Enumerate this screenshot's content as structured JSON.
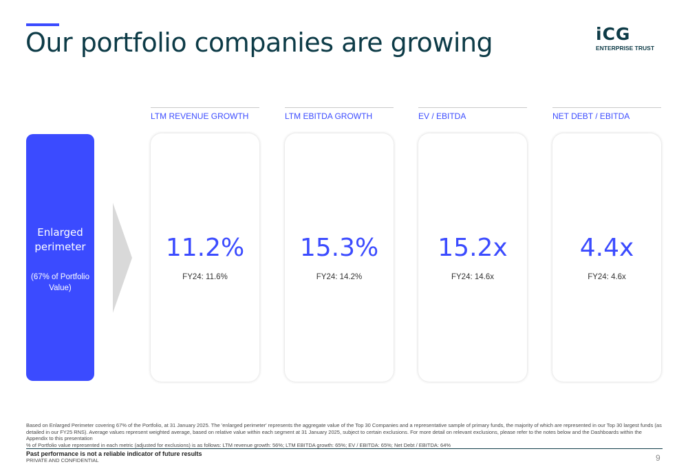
{
  "header": {
    "title": "Our portfolio companies are growing",
    "logo_mark": "iCG",
    "logo_sub": "ENTERPRISE TRUST"
  },
  "left_panel": {
    "label": "Enlarged perimeter",
    "sub": "(67% of Portfolio Value)"
  },
  "metrics": [
    {
      "header": "LTM REVENUE GROWTH",
      "value": "11.2%",
      "previous": "FY24: 11.6%"
    },
    {
      "header": "LTM EBITDA GROWTH",
      "value": "15.3%",
      "previous": "FY24: 14.2%"
    },
    {
      "header": "EV / EBITDA",
      "value": "15.2x",
      "previous": "FY24: 14.6x"
    },
    {
      "header": "NET DEBT / EBITDA",
      "value": "4.4x",
      "previous": "FY24: 4.6x"
    }
  ],
  "footer": {
    "note1": "Based on Enlarged Perimeter covering 67% of the Portfolio, at 31 January 2025. The 'enlarged perimeter' represents the aggregate value of the Top 30 Companies and a representative sample of primary funds, the majority of which are represented in our Top 30 largest funds (as detailed in our FY25 RNS). Average values represent weighted average, based on relative value within each segment at 31 January 2025, subject to certain exclusions. For more detail on relevant exclusions, please refer to the notes below and the Dashboards within the Appendix to this presentation",
    "note2": "% of Portfolio value represented in each metric (adjusted for exclusions) is as follows: LTM revenue growth: 56%; LTM EBITDA growth: 65%; EV / EBITDA: 65%; Net Debt / EBITDA: 64%",
    "disclaimer": "Past performance is not a reliable indicator of future results",
    "confidential": "PRIVATE AND CONFIDENTIAL",
    "page_number": "9"
  },
  "colors": {
    "accent": "#3b4bff",
    "title": "#0d3b47",
    "chevron": "#d9d9d9"
  }
}
